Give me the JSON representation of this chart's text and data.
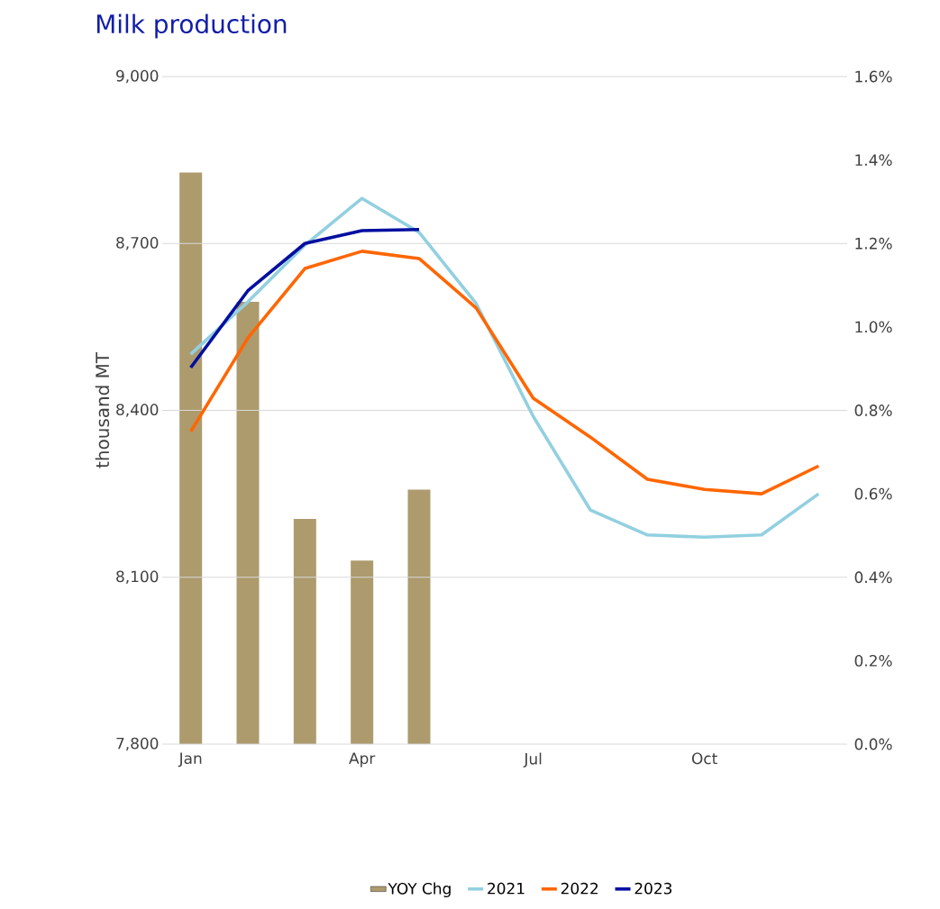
{
  "chart_data": {
    "type": "line",
    "title": "Milk production",
    "ylabel": "thousand MT",
    "categories": [
      "Jan",
      null,
      null,
      "Apr",
      null,
      null,
      "Jul",
      null,
      null,
      "Oct",
      null,
      null
    ],
    "series": [
      {
        "name": "YOY Chg",
        "type": "bar",
        "axis": "y2",
        "color": "#ad9b6e",
        "values": [
          1.37,
          1.06,
          0.54,
          0.44,
          0.61,
          null,
          null,
          null,
          null,
          null,
          null,
          null
        ]
      },
      {
        "name": "2021",
        "color": "#92d0e0",
        "values": [
          8501,
          8595,
          8697,
          8781,
          8720,
          8592,
          8389,
          8221,
          8176,
          8172,
          8176,
          8250
        ]
      },
      {
        "name": "2022",
        "color": "#ff6600",
        "values": [
          8362,
          8530,
          8655,
          8686,
          8673,
          8584,
          8422,
          8352,
          8276,
          8258,
          8250,
          8300
        ]
      },
      {
        "name": "2023",
        "color": "#000f9f",
        "values": [
          8477,
          8615,
          8700,
          8723,
          8725,
          null,
          null,
          null,
          null,
          null,
          null,
          null
        ]
      }
    ],
    "ylim": [
      7800,
      9000
    ],
    "yticks": [
      {
        "value": 7800,
        "label": "7,800"
      },
      {
        "value": 8100,
        "label": "8,100"
      },
      {
        "value": 8400,
        "label": "8,400"
      },
      {
        "value": 8700,
        "label": "8,700"
      },
      {
        "value": 9000,
        "label": "9,000"
      }
    ],
    "y2lim": [
      0,
      1.6
    ],
    "y2ticks": [
      {
        "value": 0,
        "label": "0.0%"
      },
      {
        "value": 0.2,
        "label": "0.2%"
      },
      {
        "value": 0.4,
        "label": "0.4%"
      },
      {
        "value": 0.6,
        "label": "0.6%"
      },
      {
        "value": 0.8,
        "label": "0.8%"
      },
      {
        "value": 1.0,
        "label": "1.0%"
      },
      {
        "value": 1.2,
        "label": "1.2%"
      },
      {
        "value": 1.4,
        "label": "1.4%"
      },
      {
        "value": 1.6,
        "label": "1.6%"
      }
    ],
    "grid": "y",
    "legend": "bottom",
    "marker": "none",
    "line_style": "solid"
  }
}
